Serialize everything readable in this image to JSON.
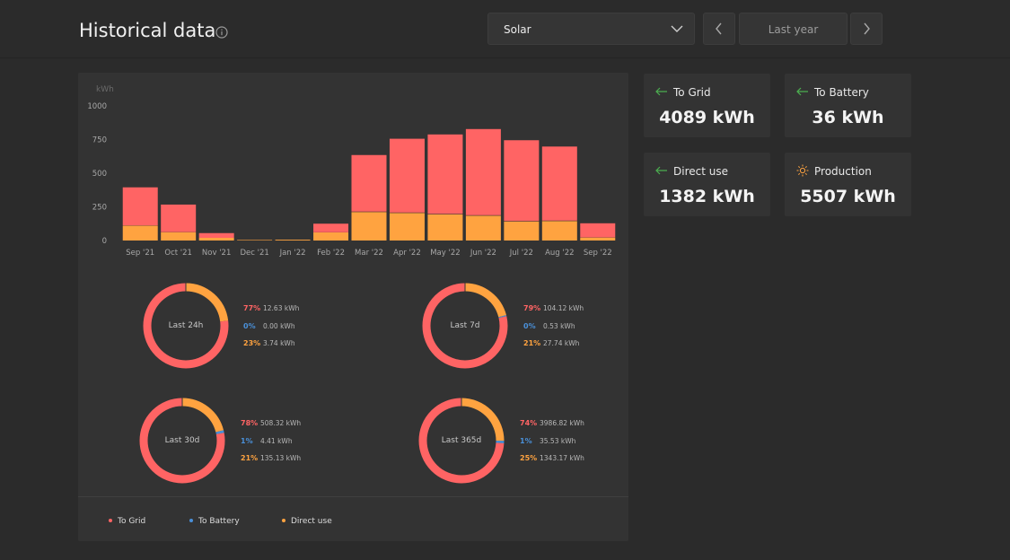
{
  "header": {
    "title": "Historical data",
    "select_value": "Solar",
    "period": "Last year"
  },
  "colors": {
    "to_grid": "#ff6464",
    "to_battery": "#4a90d9",
    "direct_use": "#ffa340",
    "bg": "#2b2b2b",
    "panel": "#333333",
    "arrow": "#4caf50",
    "sun": "#ffa340"
  },
  "chart_data": {
    "type": "bar",
    "ylabel": "kWh",
    "ylim": [
      0,
      1000
    ],
    "yticks": [
      "1000",
      "750",
      "500",
      "250",
      "0"
    ],
    "categories": [
      "Sep '21",
      "Oct '21",
      "Nov '21",
      "Dec '21",
      "Jan '22",
      "Feb '22",
      "Mar '22",
      "Apr '22",
      "May '22",
      "Jun '22",
      "Jul '22",
      "Aug '22",
      "Sep '22"
    ],
    "series": [
      {
        "name": "Direct use",
        "color": "#ffa340",
        "values": [
          110,
          62,
          20,
          4,
          6,
          60,
          212,
          205,
          195,
          185,
          142,
          145,
          22
        ]
      },
      {
        "name": "To Battery",
        "color": "#4a90d9",
        "values": [
          2,
          1,
          0,
          0,
          0,
          1,
          3,
          3,
          3,
          3,
          3,
          3,
          1
        ]
      },
      {
        "name": "To Grid",
        "color": "#ff6464",
        "values": [
          283,
          204,
          35,
          0,
          0,
          64,
          420,
          548,
          590,
          640,
          600,
          550,
          105
        ]
      }
    ]
  },
  "donuts": [
    {
      "label": "Last 24h",
      "to_grid_pct": "77%",
      "to_grid_kwh": "12.63 kWh",
      "to_battery_pct": "0%",
      "to_battery_kwh": "0.00 kWh",
      "direct_pct": "23%",
      "direct_kwh": "3.74 kWh",
      "to_grid_value": 77,
      "to_battery_value": 0,
      "direct_value": 23
    },
    {
      "label": "Last 7d",
      "to_grid_pct": "79%",
      "to_grid_kwh": "104.12 kWh",
      "to_battery_pct": "0%",
      "to_battery_kwh": "0.53 kWh",
      "direct_pct": "21%",
      "direct_kwh": "27.74 kWh",
      "to_grid_value": 79,
      "to_battery_value": 0.4,
      "direct_value": 21
    },
    {
      "label": "Last 30d",
      "to_grid_pct": "78%",
      "to_grid_kwh": "508.32 kWh",
      "to_battery_pct": "1%",
      "to_battery_kwh": "4.41 kWh",
      "direct_pct": "21%",
      "direct_kwh": "135.13 kWh",
      "to_grid_value": 78,
      "to_battery_value": 1,
      "direct_value": 21
    },
    {
      "label": "Last 365d",
      "to_grid_pct": "74%",
      "to_grid_kwh": "3986.82 kWh",
      "to_battery_pct": "1%",
      "to_battery_kwh": "35.53 kWh",
      "direct_pct": "25%",
      "direct_kwh": "1343.17 kWh",
      "to_grid_value": 74,
      "to_battery_value": 1,
      "direct_value": 25
    }
  ],
  "legend": {
    "to_grid": "To Grid",
    "to_battery": "To Battery",
    "direct_use": "Direct use"
  },
  "cards": {
    "to_grid": {
      "label": "To Grid",
      "value": "4089 kWh"
    },
    "to_battery": {
      "label": "To Battery",
      "value": "36 kWh"
    },
    "direct_use": {
      "label": "Direct use",
      "value": "1382 kWh"
    },
    "production": {
      "label": "Production",
      "value": "5507 kWh"
    }
  },
  "icons": {
    "info": "info-icon",
    "chevron": "chevron-down-icon",
    "prev": "chevron-left-icon",
    "next": "chevron-right-icon",
    "arrow": "arrow-left-icon",
    "sun": "sun-icon"
  }
}
